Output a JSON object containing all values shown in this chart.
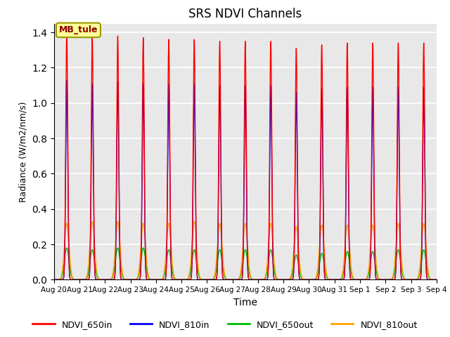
{
  "title": "SRS NDVI Channels",
  "xlabel": "Time",
  "ylabel": "Radiance (W/m2/nm/s)",
  "annotation": "MB_tule",
  "ylim": [
    0.0,
    1.45
  ],
  "yticks": [
    0.0,
    0.2,
    0.4,
    0.6,
    0.8,
    1.0,
    1.2,
    1.4
  ],
  "num_days": 15,
  "colors": {
    "NDVI_650in": "#FF0000",
    "NDVI_810in": "#0000FF",
    "NDVI_650out": "#00BB00",
    "NDVI_810out": "#FFA500"
  },
  "peak_amplitudes_650in": [
    1.4,
    1.37,
    1.38,
    1.37,
    1.36,
    1.36,
    1.35,
    1.35,
    1.35,
    1.31,
    1.33,
    1.34,
    1.34,
    1.34,
    1.34
  ],
  "peak_amplitudes_810in": [
    1.13,
    1.11,
    1.12,
    1.11,
    1.11,
    1.11,
    1.1,
    1.1,
    1.1,
    1.06,
    1.08,
    1.09,
    1.09,
    1.09,
    1.09
  ],
  "peak_amplitudes_650out": [
    0.18,
    0.17,
    0.18,
    0.18,
    0.17,
    0.17,
    0.17,
    0.17,
    0.17,
    0.14,
    0.15,
    0.16,
    0.16,
    0.17,
    0.17
  ],
  "peak_amplitudes_810out": [
    0.32,
    0.33,
    0.33,
    0.32,
    0.32,
    0.33,
    0.32,
    0.32,
    0.32,
    0.3,
    0.31,
    0.31,
    0.31,
    0.32,
    0.32
  ],
  "sigma_in": 0.04,
  "sigma_out": 0.09,
  "background_color": "#E8E8E8",
  "grid_color": "#FFFFFF",
  "fig_facecolor": "#FFFFFF",
  "legend_entries": [
    "NDVI_650in",
    "NDVI_810in",
    "NDVI_650out",
    "NDVI_810out"
  ]
}
